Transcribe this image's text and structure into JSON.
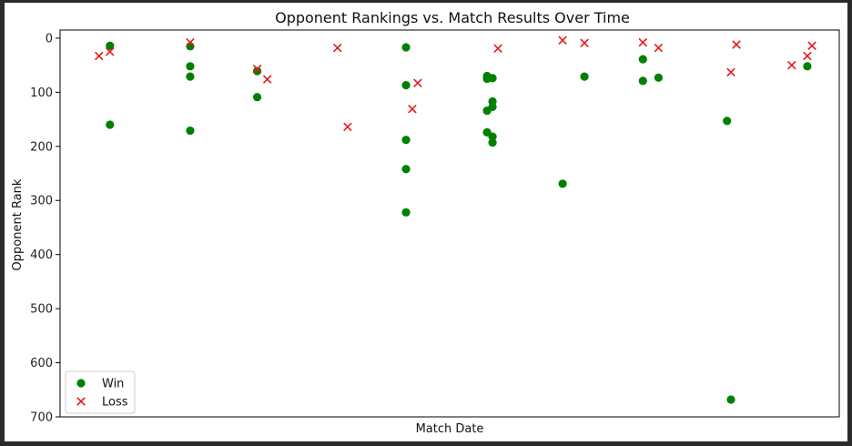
{
  "chart_data": {
    "type": "scatter",
    "title": "Opponent Rankings vs. Match Results Over Time",
    "xlabel": "Match Date",
    "ylabel": "Opponent Rank",
    "ylim": [
      700,
      -15
    ],
    "y_inverted": true,
    "yticks": [
      0,
      100,
      200,
      300,
      400,
      500,
      600,
      700
    ],
    "xlim": [
      0,
      100
    ],
    "xticks_shown": false,
    "grid": false,
    "legend_position": "lower-left",
    "series": [
      {
        "name": "Win",
        "marker": "circle",
        "color": "#008000",
        "points": [
          {
            "x": 6.4,
            "y": 14
          },
          {
            "x": 6.4,
            "y": 160
          },
          {
            "x": 16.7,
            "y": 15
          },
          {
            "x": 16.7,
            "y": 52
          },
          {
            "x": 16.7,
            "y": 71
          },
          {
            "x": 16.7,
            "y": 171
          },
          {
            "x": 25.3,
            "y": 61
          },
          {
            "x": 25.3,
            "y": 109
          },
          {
            "x": 44.4,
            "y": 17
          },
          {
            "x": 44.4,
            "y": 87
          },
          {
            "x": 44.4,
            "y": 188
          },
          {
            "x": 44.4,
            "y": 242
          },
          {
            "x": 44.4,
            "y": 322
          },
          {
            "x": 54.8,
            "y": 70
          },
          {
            "x": 54.8,
            "y": 75
          },
          {
            "x": 54.8,
            "y": 134
          },
          {
            "x": 54.8,
            "y": 174
          },
          {
            "x": 55.5,
            "y": 74
          },
          {
            "x": 55.5,
            "y": 117
          },
          {
            "x": 55.5,
            "y": 127
          },
          {
            "x": 55.5,
            "y": 182
          },
          {
            "x": 55.5,
            "y": 193
          },
          {
            "x": 64.5,
            "y": 269
          },
          {
            "x": 67.3,
            "y": 71
          },
          {
            "x": 74.8,
            "y": 39
          },
          {
            "x": 74.8,
            "y": 79
          },
          {
            "x": 76.8,
            "y": 73
          },
          {
            "x": 85.6,
            "y": 153
          },
          {
            "x": 86.1,
            "y": 668
          },
          {
            "x": 95.9,
            "y": 52
          }
        ]
      },
      {
        "name": "Loss",
        "marker": "x",
        "color": "#e31a1c",
        "points": [
          {
            "x": 5.0,
            "y": 33
          },
          {
            "x": 6.4,
            "y": 25
          },
          {
            "x": 16.7,
            "y": 8
          },
          {
            "x": 25.3,
            "y": 57
          },
          {
            "x": 26.6,
            "y": 76
          },
          {
            "x": 35.6,
            "y": 18
          },
          {
            "x": 36.9,
            "y": 164
          },
          {
            "x": 45.2,
            "y": 131
          },
          {
            "x": 45.9,
            "y": 83
          },
          {
            "x": 56.2,
            "y": 19
          },
          {
            "x": 64.5,
            "y": 4
          },
          {
            "x": 67.3,
            "y": 9
          },
          {
            "x": 74.8,
            "y": 8
          },
          {
            "x": 76.8,
            "y": 18
          },
          {
            "x": 86.1,
            "y": 63
          },
          {
            "x": 86.8,
            "y": 12
          },
          {
            "x": 93.9,
            "y": 50
          },
          {
            "x": 95.9,
            "y": 33
          },
          {
            "x": 96.5,
            "y": 14
          }
        ]
      }
    ]
  }
}
